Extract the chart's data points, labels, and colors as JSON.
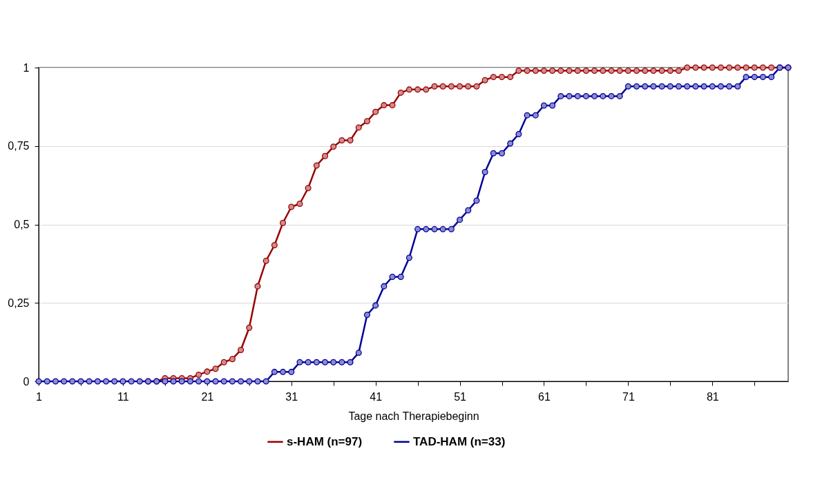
{
  "chart_data": {
    "type": "line",
    "xlabel": "Tage nach Therapiebeginn",
    "x": [
      1,
      2,
      3,
      4,
      5,
      6,
      7,
      8,
      9,
      10,
      11,
      12,
      13,
      14,
      15,
      16,
      17,
      18,
      19,
      20,
      21,
      22,
      23,
      24,
      25,
      26,
      27,
      28,
      29,
      30,
      31,
      32,
      33,
      34,
      35,
      36,
      37,
      38,
      39,
      40,
      41,
      42,
      43,
      44,
      45,
      46,
      47,
      48,
      49,
      50,
      51,
      52,
      53,
      54,
      55,
      56,
      57,
      58,
      59,
      60,
      61,
      62,
      63,
      64,
      65,
      66,
      67,
      68,
      69,
      70,
      71,
      72,
      73,
      74,
      75,
      76,
      77,
      78,
      79,
      80,
      81,
      82,
      83,
      84,
      85,
      86,
      87,
      88,
      89,
      90
    ],
    "series": [
      {
        "name": "s-HAM (n=97)",
        "color": "#990000",
        "values": [
          null,
          null,
          null,
          null,
          null,
          null,
          null,
          null,
          null,
          null,
          null,
          null,
          null,
          0,
          0,
          0.01,
          0.01,
          0.01,
          0.01,
          0.021,
          0.031,
          0.04,
          0.061,
          0.071,
          0.1,
          0.171,
          0.303,
          0.384,
          0.434,
          0.505,
          0.556,
          0.566,
          0.616,
          0.688,
          0.718,
          0.748,
          0.768,
          0.768,
          0.809,
          0.829,
          0.859,
          0.88,
          0.88,
          0.92,
          0.93,
          0.93,
          0.93,
          0.94,
          0.94,
          0.94,
          0.94,
          0.94,
          0.94,
          0.96,
          0.97,
          0.97,
          0.97,
          0.99,
          0.99,
          0.99,
          0.99,
          0.99,
          0.99,
          0.99,
          0.99,
          0.99,
          0.99,
          0.99,
          0.99,
          0.99,
          0.99,
          0.99,
          0.99,
          0.99,
          0.99,
          0.99,
          0.99,
          1,
          1,
          1,
          1,
          1,
          1,
          1,
          1,
          1,
          1,
          1,
          1,
          1
        ]
      },
      {
        "name": "TAD-HAM (n=33)",
        "color": "#000099",
        "values": [
          0,
          0,
          0,
          0,
          0,
          0,
          0,
          0,
          0,
          0,
          0,
          0,
          0,
          0,
          0,
          0,
          0,
          0,
          0,
          0,
          0,
          0,
          0,
          0,
          0,
          0,
          0,
          0,
          0.03,
          0.03,
          0.03,
          0.061,
          0.061,
          0.061,
          0.061,
          0.061,
          0.061,
          0.061,
          0.091,
          0.212,
          0.242,
          0.303,
          0.333,
          0.333,
          0.394,
          0.485,
          0.485,
          0.485,
          0.485,
          0.485,
          0.515,
          0.545,
          0.576,
          0.667,
          0.727,
          0.727,
          0.758,
          0.788,
          0.848,
          0.848,
          0.879,
          0.879,
          0.909,
          0.909,
          0.909,
          0.909,
          0.909,
          0.909,
          0.909,
          0.909,
          0.94,
          0.94,
          0.94,
          0.94,
          0.94,
          0.94,
          0.94,
          0.94,
          0.94,
          0.94,
          0.94,
          0.94,
          0.94,
          0.94,
          0.97,
          0.97,
          0.97,
          0.97,
          1,
          1
        ]
      }
    ],
    "xlim": [
      1,
      90
    ],
    "xticks": [
      1,
      {
        "value": 6,
        "label": null
      },
      11,
      {
        "value": 16,
        "label": null
      },
      21,
      {
        "value": 26,
        "label": null
      },
      31,
      {
        "value": 36,
        "label": null
      },
      41,
      {
        "value": 46,
        "label": null
      },
      51,
      {
        "value": 56,
        "label": null
      },
      61,
      {
        "value": 66,
        "label": null
      },
      71,
      {
        "value": 76,
        "label": null
      },
      81,
      {
        "value": 86,
        "label": null
      }
    ],
    "ylim": [
      0,
      1
    ],
    "yticks": [
      0,
      {
        "value": 0.25,
        "label": "0,25"
      },
      {
        "value": 0.5,
        "label": "0,5"
      },
      {
        "value": 0.75,
        "label": "0,75"
      },
      1
    ],
    "grid": "y",
    "legend": "bottom",
    "marker": "circle",
    "line_style": "solid"
  }
}
